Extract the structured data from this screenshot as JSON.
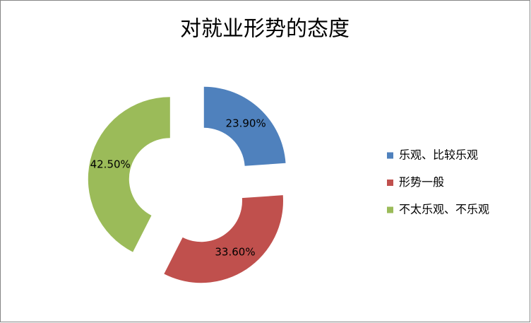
{
  "chart_data": {
    "type": "doughnut",
    "title": "对就业形势的态度",
    "categories": [
      "乐观、比较乐观",
      "形势一般",
      "不太乐观、不乐观"
    ],
    "values": [
      23.9,
      33.6,
      42.5
    ],
    "value_labels": [
      "23.90%",
      "33.60%",
      "42.50%"
    ],
    "colors": [
      "#4f81bd",
      "#c0504d",
      "#9bbb59"
    ],
    "legend": "right"
  }
}
